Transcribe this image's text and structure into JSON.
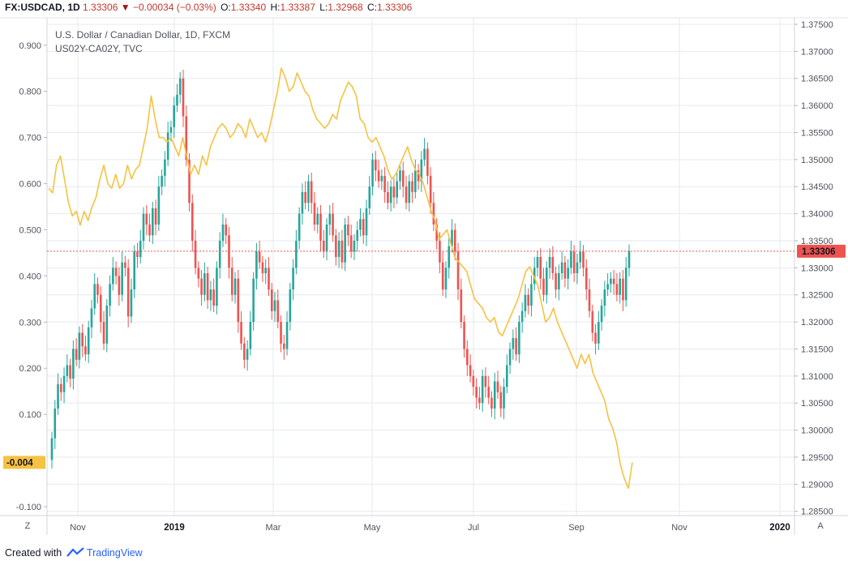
{
  "header": {
    "symbol": "FX:USDCAD, 1D",
    "last": "1.33306",
    "change_arrow": "▼",
    "change": "−0.00034 (−0.03%)",
    "o_label": "O:",
    "o_value": "1.33340",
    "h_label": "H:",
    "h_value": "1.33387",
    "l_label": "L:",
    "l_value": "1.32968",
    "c_label": "C:",
    "c_value": "1.33306"
  },
  "legend": {
    "main": "U.S. Dollar / Canadian Dollar, 1D, FXCM",
    "overlay": "US02Y-CA02Y, TVC"
  },
  "footer": {
    "created_with": "Created with",
    "brand": "TradingView"
  },
  "corners": {
    "left": "Z",
    "right": "A"
  },
  "colors": {
    "up": "#26a69a",
    "down": "#ef5350",
    "overlay": "#f6c242",
    "price_line": "#ef5350",
    "grid": "#e6e9ef"
  },
  "chart_data": {
    "type": "candlestick",
    "title": "U.S. Dollar / Canadian Dollar, 1D, FXCM",
    "x_labels": [
      "Nov",
      "2019",
      "Mar",
      "May",
      "Jul",
      "Sep",
      "Nov",
      "2020"
    ],
    "right_axis": {
      "ticks": [
        "1.37500",
        "1.37000",
        "1.36500",
        "1.36000",
        "1.35500",
        "1.35000",
        "1.34500",
        "1.34000",
        "1.33500",
        "1.33000",
        "1.32500",
        "1.32000",
        "1.31500",
        "1.31000",
        "1.30500",
        "1.30000",
        "1.29500",
        "1.29000",
        "1.28500"
      ],
      "range": [
        1.2842,
        1.3762
      ],
      "current_label": "1.33306",
      "current_value": 1.33306
    },
    "left_axis": {
      "ticks": [
        "0.900",
        "0.800",
        "0.700",
        "0.600",
        "0.500",
        "0.400",
        "0.300",
        "0.200",
        "0.100",
        "-0.100"
      ],
      "range": [
        -0.1193,
        0.9593
      ],
      "current_label": "-0.004",
      "current_value": -0.004
    },
    "series": [
      {
        "name": "FX:USDCAD",
        "axis": "right",
        "note": "daily closes, approximately",
        "values": [
          1.2985,
          1.304,
          1.3085,
          1.307,
          1.31,
          1.312,
          1.3095,
          1.315,
          1.313,
          1.318,
          1.3155,
          1.314,
          1.319,
          1.3225,
          1.327,
          1.325,
          1.32,
          1.316,
          1.323,
          1.327,
          1.33,
          1.3285,
          1.325,
          1.331,
          1.33,
          1.321,
          1.326,
          1.333,
          1.332,
          1.335,
          1.34,
          1.338,
          1.336,
          1.341,
          1.338,
          1.345,
          1.347,
          1.35,
          1.355,
          1.356,
          1.36,
          1.362,
          1.365,
          1.358,
          1.35,
          1.342,
          1.335,
          1.33,
          1.328,
          1.325,
          1.329,
          1.324,
          1.326,
          1.323,
          1.33,
          1.335,
          1.338,
          1.336,
          1.33,
          1.325,
          1.328,
          1.32,
          1.316,
          1.313,
          1.315,
          1.32,
          1.328,
          1.333,
          1.331,
          1.329,
          1.33,
          1.326,
          1.322,
          1.324,
          1.32,
          1.316,
          1.315,
          1.32,
          1.326,
          1.33,
          1.335,
          1.34,
          1.344,
          1.342,
          1.346,
          1.342,
          1.338,
          1.34,
          1.335,
          1.333,
          1.338,
          1.34,
          1.336,
          1.332,
          1.335,
          1.331,
          1.338,
          1.336,
          1.333,
          1.335,
          1.337,
          1.339,
          1.336,
          1.341,
          1.345,
          1.35,
          1.348,
          1.346,
          1.347,
          1.344,
          1.342,
          1.345,
          1.343,
          1.346,
          1.348,
          1.345,
          1.342,
          1.346,
          1.344,
          1.348,
          1.346,
          1.35,
          1.352,
          1.347,
          1.342,
          1.338,
          1.335,
          1.331,
          1.326,
          1.33,
          1.334,
          1.337,
          1.333,
          1.326,
          1.32,
          1.315,
          1.312,
          1.31,
          1.308,
          1.306,
          1.305,
          1.31,
          1.308,
          1.306,
          1.304,
          1.309,
          1.307,
          1.304,
          1.308,
          1.312,
          1.315,
          1.317,
          1.314,
          1.32,
          1.322,
          1.325,
          1.323,
          1.327,
          1.33,
          1.332,
          1.328,
          1.325,
          1.33,
          1.332,
          1.329,
          1.326,
          1.329,
          1.331,
          1.328,
          1.33,
          1.333,
          1.329,
          1.331,
          1.333,
          1.33,
          1.326,
          1.322,
          1.318,
          1.316,
          1.32,
          1.323,
          1.326,
          1.327,
          1.328,
          1.327,
          1.325,
          1.328,
          1.324,
          1.33,
          1.3331
        ]
      },
      {
        "name": "US02Y-CA02Y",
        "axis": "left",
        "note": "daily values, approximately",
        "values": [
          0.59,
          0.58,
          0.64,
          0.66,
          0.61,
          0.56,
          0.53,
          0.54,
          0.51,
          0.54,
          0.52,
          0.55,
          0.57,
          0.61,
          0.64,
          0.6,
          0.59,
          0.62,
          0.59,
          0.6,
          0.64,
          0.61,
          0.63,
          0.64,
          0.68,
          0.72,
          0.79,
          0.74,
          0.7,
          0.7,
          0.69,
          0.7,
          0.68,
          0.66,
          0.7,
          0.66,
          0.62,
          0.64,
          0.62,
          0.66,
          0.64,
          0.68,
          0.7,
          0.72,
          0.73,
          0.72,
          0.7,
          0.71,
          0.73,
          0.72,
          0.7,
          0.74,
          0.72,
          0.7,
          0.71,
          0.69,
          0.72,
          0.76,
          0.8,
          0.85,
          0.83,
          0.8,
          0.81,
          0.84,
          0.82,
          0.8,
          0.79,
          0.76,
          0.74,
          0.73,
          0.72,
          0.73,
          0.75,
          0.74,
          0.78,
          0.8,
          0.82,
          0.81,
          0.79,
          0.74,
          0.73,
          0.7,
          0.69,
          0.7,
          0.68,
          0.66,
          0.63,
          0.61,
          0.62,
          0.64,
          0.66,
          0.68,
          0.65,
          0.63,
          0.62,
          0.6,
          0.57,
          0.54,
          0.52,
          0.48,
          0.49,
          0.5,
          0.47,
          0.44,
          0.43,
          0.42,
          0.41,
          0.38,
          0.35,
          0.34,
          0.33,
          0.31,
          0.3,
          0.31,
          0.28,
          0.27,
          0.29,
          0.31,
          0.33,
          0.35,
          0.38,
          0.41,
          0.42,
          0.4,
          0.38,
          0.34,
          0.3,
          0.31,
          0.33,
          0.3,
          0.28,
          0.26,
          0.24,
          0.22,
          0.2,
          0.23,
          0.21,
          0.23,
          0.19,
          0.17,
          0.15,
          0.13,
          0.09,
          0.07,
          0.04,
          -0.01,
          -0.04,
          -0.06,
          -0.004
        ]
      }
    ]
  }
}
